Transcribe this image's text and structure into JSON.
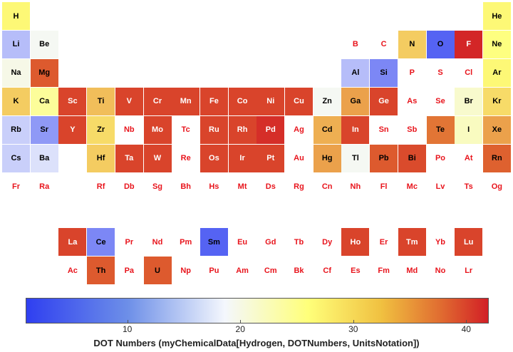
{
  "chart_data": {
    "type": "heatmap",
    "title": "",
    "xlabel": "DOT Numbers (myChemicalData[Hydrogen, DOTNumbers, UnitsNotation])",
    "colorbar": {
      "min": 1,
      "max": 42,
      "ticks": [
        10,
        20,
        30,
        40
      ],
      "colors": [
        "#2f3ff0",
        "#f4f7fd",
        "#ffff7a",
        "#e06a30",
        "#d21f26"
      ]
    },
    "elements": [
      {
        "symbol": "H",
        "row": 1,
        "col": 1,
        "value": 22
      },
      {
        "symbol": "He",
        "row": 1,
        "col": 18,
        "value": 22
      },
      {
        "symbol": "Li",
        "row": 2,
        "col": 1,
        "value": 8
      },
      {
        "symbol": "Be",
        "row": 2,
        "col": 2,
        "value": 12
      },
      {
        "symbol": "B",
        "row": 2,
        "col": 13,
        "value": null
      },
      {
        "symbol": "C",
        "row": 2,
        "col": 14,
        "value": null
      },
      {
        "symbol": "N",
        "row": 2,
        "col": 15,
        "value": 25
      },
      {
        "symbol": "O",
        "row": 2,
        "col": 16,
        "value": 3
      },
      {
        "symbol": "F",
        "row": 2,
        "col": 17,
        "value": 41
      },
      {
        "symbol": "Ne",
        "row": 2,
        "col": 18,
        "value": 21
      },
      {
        "symbol": "Na",
        "row": 3,
        "col": 1,
        "value": 13
      },
      {
        "symbol": "Mg",
        "row": 3,
        "col": 2,
        "value": 34
      },
      {
        "symbol": "Al",
        "row": 3,
        "col": 13,
        "value": 8
      },
      {
        "symbol": "Si",
        "row": 3,
        "col": 14,
        "value": 5
      },
      {
        "symbol": "P",
        "row": 3,
        "col": 15,
        "value": null
      },
      {
        "symbol": "S",
        "row": 3,
        "col": 16,
        "value": null
      },
      {
        "symbol": "Cl",
        "row": 3,
        "col": 17,
        "value": null
      },
      {
        "symbol": "Ar",
        "row": 3,
        "col": 18,
        "value": 22
      },
      {
        "symbol": "K",
        "row": 4,
        "col": 1,
        "value": 25
      },
      {
        "symbol": "Ca",
        "row": 4,
        "col": 2,
        "value": 19
      },
      {
        "symbol": "Sc",
        "row": 4,
        "col": 3,
        "value": 37
      },
      {
        "symbol": "Ti",
        "row": 4,
        "col": 4,
        "value": 26
      },
      {
        "symbol": "V",
        "row": 4,
        "col": 5,
        "value": 37
      },
      {
        "symbol": "Cr",
        "row": 4,
        "col": 6,
        "value": 37
      },
      {
        "symbol": "Mn",
        "row": 4,
        "col": 7,
        "value": 37
      },
      {
        "symbol": "Fe",
        "row": 4,
        "col": 8,
        "value": 37
      },
      {
        "symbol": "Co",
        "row": 4,
        "col": 9,
        "value": 37
      },
      {
        "symbol": "Ni",
        "row": 4,
        "col": 10,
        "value": 37
      },
      {
        "symbol": "Cu",
        "row": 4,
        "col": 11,
        "value": 37
      },
      {
        "symbol": "Zn",
        "row": 4,
        "col": 12,
        "value": 12
      },
      {
        "symbol": "Ga",
        "row": 4,
        "col": 13,
        "value": 28
      },
      {
        "symbol": "Ge",
        "row": 4,
        "col": 14,
        "value": 37
      },
      {
        "symbol": "As",
        "row": 4,
        "col": 15,
        "value": null
      },
      {
        "symbol": "Se",
        "row": 4,
        "col": 16,
        "value": null
      },
      {
        "symbol": "Br",
        "row": 4,
        "col": 17,
        "value": 15
      },
      {
        "symbol": "Kr",
        "row": 4,
        "col": 18,
        "value": 24
      },
      {
        "symbol": "Rb",
        "row": 5,
        "col": 1,
        "value": 9
      },
      {
        "symbol": "Sr",
        "row": 5,
        "col": 2,
        "value": 6
      },
      {
        "symbol": "Y",
        "row": 5,
        "col": 3,
        "value": 37
      },
      {
        "symbol": "Zr",
        "row": 5,
        "col": 4,
        "value": 24
      },
      {
        "symbol": "Nb",
        "row": 5,
        "col": 5,
        "value": null
      },
      {
        "symbol": "Mo",
        "row": 5,
        "col": 6,
        "value": 37
      },
      {
        "symbol": "Tc",
        "row": 5,
        "col": 7,
        "value": null
      },
      {
        "symbol": "Ru",
        "row": 5,
        "col": 8,
        "value": 37
      },
      {
        "symbol": "Rh",
        "row": 5,
        "col": 9,
        "value": 37
      },
      {
        "symbol": "Pd",
        "row": 5,
        "col": 10,
        "value": 40
      },
      {
        "symbol": "Ag",
        "row": 5,
        "col": 11,
        "value": null
      },
      {
        "symbol": "Cd",
        "row": 5,
        "col": 12,
        "value": 27
      },
      {
        "symbol": "In",
        "row": 5,
        "col": 13,
        "value": 37
      },
      {
        "symbol": "Sn",
        "row": 5,
        "col": 14,
        "value": null
      },
      {
        "symbol": "Sb",
        "row": 5,
        "col": 15,
        "value": null
      },
      {
        "symbol": "Te",
        "row": 5,
        "col": 16,
        "value": 31
      },
      {
        "symbol": "I",
        "row": 5,
        "col": 17,
        "value": 16
      },
      {
        "symbol": "Xe",
        "row": 5,
        "col": 18,
        "value": 28
      },
      {
        "symbol": "Cs",
        "row": 6,
        "col": 1,
        "value": 9
      },
      {
        "symbol": "Ba",
        "row": 6,
        "col": 2,
        "value": 10
      },
      {
        "symbol": "Hf",
        "row": 6,
        "col": 4,
        "value": 25
      },
      {
        "symbol": "Ta",
        "row": 6,
        "col": 5,
        "value": 37
      },
      {
        "symbol": "W",
        "row": 6,
        "col": 6,
        "value": 37
      },
      {
        "symbol": "Re",
        "row": 6,
        "col": 7,
        "value": null
      },
      {
        "symbol": "Os",
        "row": 6,
        "col": 8,
        "value": 37
      },
      {
        "symbol": "Ir",
        "row": 6,
        "col": 9,
        "value": 37
      },
      {
        "symbol": "Pt",
        "row": 6,
        "col": 10,
        "value": 37
      },
      {
        "symbol": "Au",
        "row": 6,
        "col": 11,
        "value": null
      },
      {
        "symbol": "Hg",
        "row": 6,
        "col": 12,
        "value": 28
      },
      {
        "symbol": "Tl",
        "row": 6,
        "col": 13,
        "value": 12
      },
      {
        "symbol": "Pb",
        "row": 6,
        "col": 14,
        "value": 34
      },
      {
        "symbol": "Bi",
        "row": 6,
        "col": 15,
        "value": 36
      },
      {
        "symbol": "Po",
        "row": 6,
        "col": 16,
        "value": null
      },
      {
        "symbol": "At",
        "row": 6,
        "col": 17,
        "value": null
      },
      {
        "symbol": "Rn",
        "row": 6,
        "col": 18,
        "value": 33
      },
      {
        "symbol": "Fr",
        "row": 7,
        "col": 1,
        "value": null
      },
      {
        "symbol": "Ra",
        "row": 7,
        "col": 2,
        "value": null
      },
      {
        "symbol": "Rf",
        "row": 7,
        "col": 4,
        "value": null
      },
      {
        "symbol": "Db",
        "row": 7,
        "col": 5,
        "value": null
      },
      {
        "symbol": "Sg",
        "row": 7,
        "col": 6,
        "value": null
      },
      {
        "symbol": "Bh",
        "row": 7,
        "col": 7,
        "value": null
      },
      {
        "symbol": "Hs",
        "row": 7,
        "col": 8,
        "value": null
      },
      {
        "symbol": "Mt",
        "row": 7,
        "col": 9,
        "value": null
      },
      {
        "symbol": "Ds",
        "row": 7,
        "col": 10,
        "value": null
      },
      {
        "symbol": "Rg",
        "row": 7,
        "col": 11,
        "value": null
      },
      {
        "symbol": "Cn",
        "row": 7,
        "col": 12,
        "value": null
      },
      {
        "symbol": "Nh",
        "row": 7,
        "col": 13,
        "value": null
      },
      {
        "symbol": "Fl",
        "row": 7,
        "col": 14,
        "value": null
      },
      {
        "symbol": "Mc",
        "row": 7,
        "col": 15,
        "value": null
      },
      {
        "symbol": "Lv",
        "row": 7,
        "col": 16,
        "value": null
      },
      {
        "symbol": "Ts",
        "row": 7,
        "col": 17,
        "value": null
      },
      {
        "symbol": "Og",
        "row": 7,
        "col": 18,
        "value": null
      },
      {
        "symbol": "La",
        "row": 9,
        "col": 3,
        "value": 37
      },
      {
        "symbol": "Ce",
        "row": 9,
        "col": 4,
        "value": 5
      },
      {
        "symbol": "Pr",
        "row": 9,
        "col": 5,
        "value": null
      },
      {
        "symbol": "Nd",
        "row": 9,
        "col": 6,
        "value": null
      },
      {
        "symbol": "Pm",
        "row": 9,
        "col": 7,
        "value": null
      },
      {
        "symbol": "Sm",
        "row": 9,
        "col": 8,
        "value": 3
      },
      {
        "symbol": "Eu",
        "row": 9,
        "col": 9,
        "value": null
      },
      {
        "symbol": "Gd",
        "row": 9,
        "col": 10,
        "value": null
      },
      {
        "symbol": "Tb",
        "row": 9,
        "col": 11,
        "value": null
      },
      {
        "symbol": "Dy",
        "row": 9,
        "col": 12,
        "value": null
      },
      {
        "symbol": "Ho",
        "row": 9,
        "col": 13,
        "value": 37
      },
      {
        "symbol": "Er",
        "row": 9,
        "col": 14,
        "value": null
      },
      {
        "symbol": "Tm",
        "row": 9,
        "col": 15,
        "value": 37
      },
      {
        "symbol": "Yb",
        "row": 9,
        "col": 16,
        "value": null
      },
      {
        "symbol": "Lu",
        "row": 9,
        "col": 17,
        "value": 37
      },
      {
        "symbol": "Ac",
        "row": 10,
        "col": 3,
        "value": null
      },
      {
        "symbol": "Th",
        "row": 10,
        "col": 4,
        "value": 34
      },
      {
        "symbol": "Pa",
        "row": 10,
        "col": 5,
        "value": null
      },
      {
        "symbol": "U",
        "row": 10,
        "col": 6,
        "value": 34
      },
      {
        "symbol": "Np",
        "row": 10,
        "col": 7,
        "value": null
      },
      {
        "symbol": "Pu",
        "row": 10,
        "col": 8,
        "value": null
      },
      {
        "symbol": "Am",
        "row": 10,
        "col": 9,
        "value": null
      },
      {
        "symbol": "Cm",
        "row": 10,
        "col": 10,
        "value": null
      },
      {
        "symbol": "Bk",
        "row": 10,
        "col": 11,
        "value": null
      },
      {
        "symbol": "Cf",
        "row": 10,
        "col": 12,
        "value": null
      },
      {
        "symbol": "Es",
        "row": 10,
        "col": 13,
        "value": null
      },
      {
        "symbol": "Fm",
        "row": 10,
        "col": 14,
        "value": null
      },
      {
        "symbol": "Md",
        "row": 10,
        "col": 15,
        "value": null
      },
      {
        "symbol": "No",
        "row": 10,
        "col": 16,
        "value": null
      },
      {
        "symbol": "Lr",
        "row": 10,
        "col": 17,
        "value": null
      }
    ]
  }
}
